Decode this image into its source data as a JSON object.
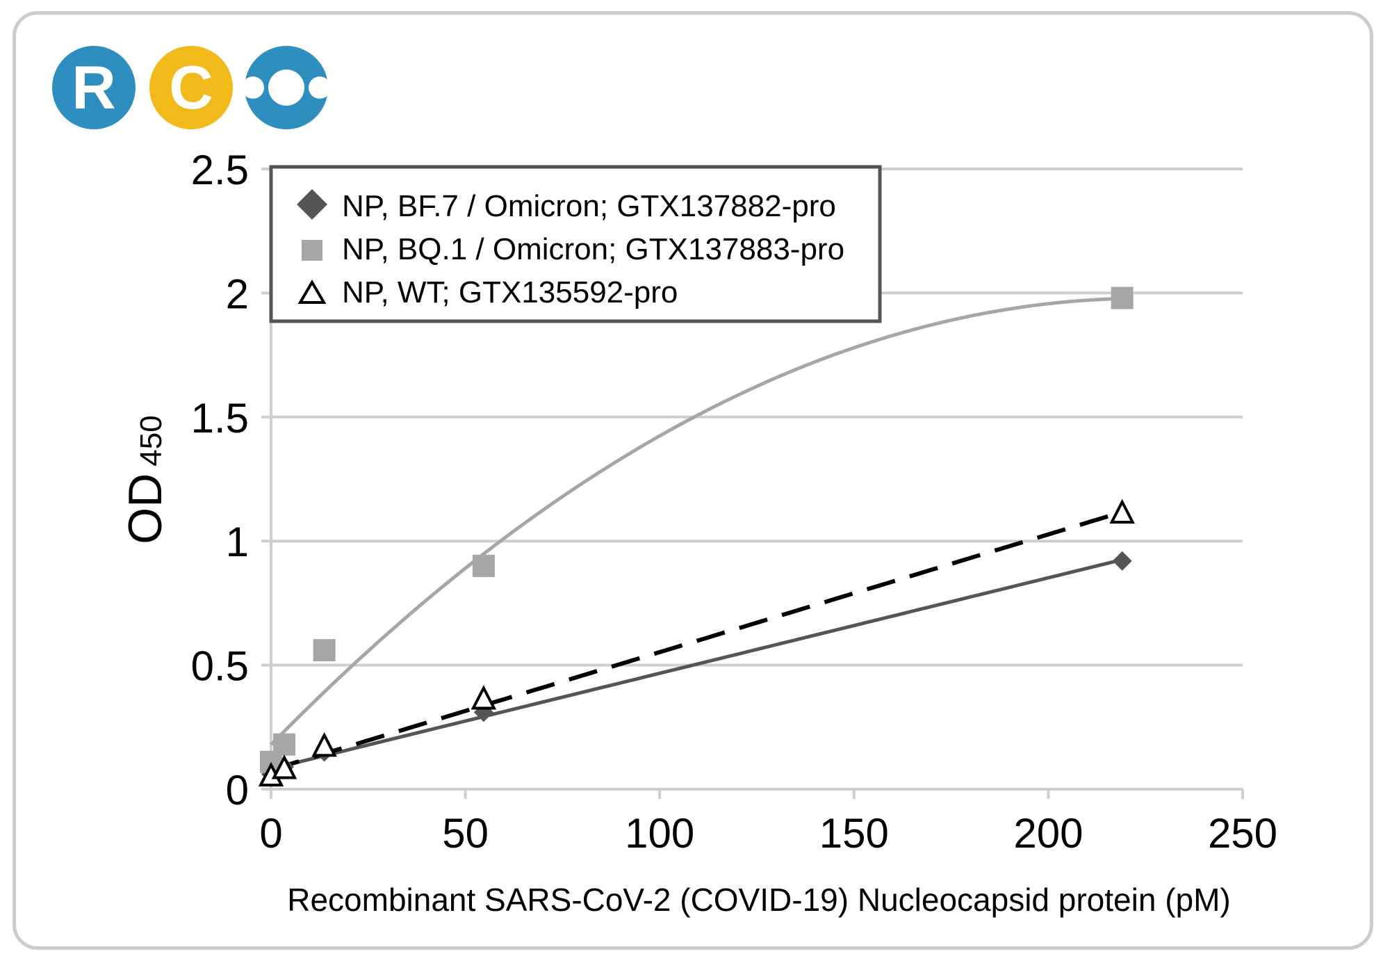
{
  "logo": {
    "letters": [
      "R",
      "C",
      "O"
    ],
    "colors": [
      "#2e8ec0",
      "#f2b91b",
      "#2e8ec0"
    ]
  },
  "chart_data": {
    "type": "scatter",
    "title": "",
    "xlabel": "Recombinant SARS-CoV-2 (COVID-19) Nucleocapsid protein (pM)",
    "ylabel_main": "OD",
    "ylabel_sub": "450",
    "xlim": [
      0,
      250
    ],
    "ylim": [
      0,
      2.5
    ],
    "xticks": [
      0,
      50,
      100,
      150,
      200,
      250
    ],
    "yticks": [
      0,
      0.5,
      1,
      1.5,
      2,
      2.5
    ],
    "ytick_labels": [
      "0",
      "0.5",
      "1",
      "1.5",
      "2",
      "2.5"
    ],
    "grid": true,
    "legend_position": "top-left",
    "series": [
      {
        "name": "NP, BF.7 / Omicron; GTX137882-pro",
        "marker": "diamond",
        "color": "#555555",
        "line_style": "solid",
        "points": [
          [
            0,
            0.06
          ],
          [
            3.4,
            0.09
          ],
          [
            13.7,
            0.15
          ],
          [
            54.7,
            0.31
          ],
          [
            219,
            0.92
          ]
        ]
      },
      {
        "name": "NP, BQ.1 / Omicron; GTX137883-pro",
        "marker": "square",
        "color": "#a6a6a6",
        "line_style": "solid",
        "points": [
          [
            0,
            0.11
          ],
          [
            3.4,
            0.18
          ],
          [
            13.7,
            0.56
          ],
          [
            54.7,
            0.9
          ],
          [
            219,
            1.98
          ]
        ]
      },
      {
        "name": "NP, WT; GTX135592-pro",
        "marker": "triangle-open",
        "color": "#000000",
        "line_style": "dashed",
        "points": [
          [
            0,
            0.05
          ],
          [
            3.4,
            0.08
          ],
          [
            13.7,
            0.17
          ],
          [
            54.7,
            0.36
          ],
          [
            219,
            1.11
          ]
        ]
      }
    ]
  }
}
